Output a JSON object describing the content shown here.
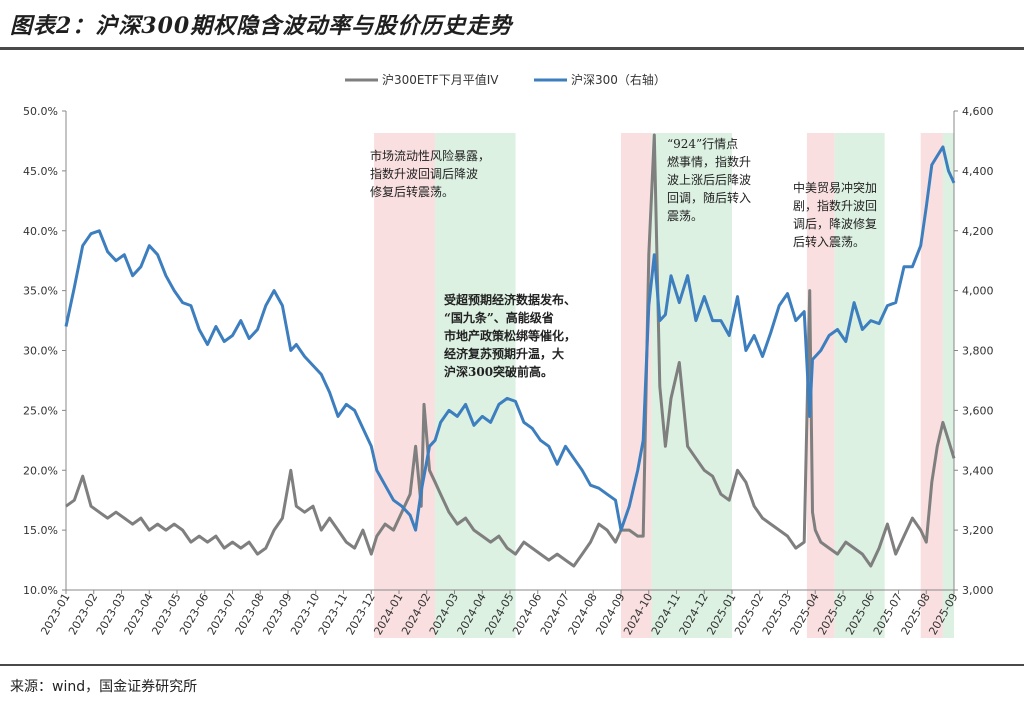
{
  "page": {
    "title": "图表2：沪深300期权隐含波动率与股价历史走势",
    "source": "来源：wind，国金证券研究所"
  },
  "colors": {
    "iv_line": "#7f7f7f",
    "index_line": "#3d7ebf",
    "risk_band": "#f8d9d9",
    "calm_band": "#d6efdd"
  },
  "chart_data": {
    "type": "line",
    "title": "",
    "legend": [
      "沪300ETF下月平值IV",
      "沪深300（右轴）"
    ],
    "legend_position": "top-center",
    "x_tick_labels": [
      "2023-01",
      "2023-02",
      "2023-03",
      "2023-04",
      "2023-05",
      "2023-06",
      "2023-07",
      "2023-08",
      "2023-09",
      "2023-10",
      "2023-11",
      "2023-12",
      "2024-01",
      "2024-02",
      "2024-03",
      "2024-04",
      "2024-05",
      "2024-06",
      "2024-07",
      "2024-08",
      "2024-09",
      "2024-10",
      "2024-11",
      "2024-12",
      "2025-01",
      "2025-02",
      "2025-03",
      "2025-04",
      "2025-05",
      "2025-06",
      "2025-07",
      "2025-08",
      "2025-09"
    ],
    "y_left": {
      "min": 10,
      "max": 50,
      "ticks": [
        "10.0%",
        "15.0%",
        "20.0%",
        "25.0%",
        "30.0%",
        "35.0%",
        "40.0%",
        "45.0%",
        "50.0%"
      ]
    },
    "y_right": {
      "min": 3000,
      "max": 4600,
      "ticks": [
        "3,000",
        "3,200",
        "3,400",
        "3,600",
        "3,800",
        "4,000",
        "4,200",
        "4,400",
        "4,600"
      ]
    },
    "bands": [
      {
        "start": 11.1,
        "end": 13.3,
        "kind": "risk"
      },
      {
        "start": 13.3,
        "end": 16.2,
        "kind": "calm"
      },
      {
        "start": 20.0,
        "end": 21.1,
        "kind": "risk"
      },
      {
        "start": 21.1,
        "end": 24.0,
        "kind": "calm"
      },
      {
        "start": 26.7,
        "end": 27.7,
        "kind": "risk"
      },
      {
        "start": 27.7,
        "end": 29.5,
        "kind": "calm"
      },
      {
        "start": 30.8,
        "end": 31.6,
        "kind": "risk"
      },
      {
        "start": 31.6,
        "end": 32.0,
        "kind": "calm"
      }
    ],
    "series": [
      {
        "name": "沪300ETF下月平值IV",
        "axis": "left",
        "t": [
          0,
          0.3,
          0.6,
          0.9,
          1.2,
          1.5,
          1.8,
          2.1,
          2.4,
          2.7,
          3.0,
          3.3,
          3.6,
          3.9,
          4.2,
          4.5,
          4.8,
          5.1,
          5.4,
          5.7,
          6.0,
          6.3,
          6.6,
          6.9,
          7.2,
          7.5,
          7.8,
          8.1,
          8.3,
          8.6,
          8.9,
          9.2,
          9.5,
          9.8,
          10.1,
          10.4,
          10.7,
          11.0,
          11.2,
          11.5,
          11.8,
          12.1,
          12.4,
          12.6,
          12.8,
          12.9,
          13.1,
          13.3,
          13.5,
          13.8,
          14.1,
          14.4,
          14.7,
          15.0,
          15.3,
          15.6,
          15.9,
          16.2,
          16.5,
          16.8,
          17.1,
          17.4,
          17.7,
          18.0,
          18.3,
          18.6,
          18.9,
          19.2,
          19.5,
          19.8,
          20.0,
          20.3,
          20.6,
          20.8,
          21.0,
          21.2,
          21.4,
          21.6,
          21.8,
          22.1,
          22.4,
          22.7,
          23.0,
          23.3,
          23.6,
          23.9,
          24.2,
          24.5,
          24.8,
          25.1,
          25.4,
          25.7,
          26.0,
          26.3,
          26.6,
          26.8,
          26.9,
          27.0,
          27.2,
          27.5,
          27.8,
          28.1,
          28.4,
          28.7,
          29.0,
          29.3,
          29.6,
          29.9,
          30.2,
          30.5,
          30.8,
          31.0,
          31.2,
          31.4,
          31.6,
          31.8,
          32.0
        ],
        "values": [
          17.0,
          17.5,
          19.5,
          17.0,
          16.5,
          16.0,
          16.5,
          16.0,
          15.5,
          16.0,
          15.0,
          15.5,
          15.0,
          15.5,
          15.0,
          14.0,
          14.5,
          14.0,
          14.5,
          13.5,
          14.0,
          13.5,
          14.0,
          13.0,
          13.5,
          15.0,
          16.0,
          20.0,
          17.0,
          16.5,
          17.0,
          15.0,
          16.0,
          15.0,
          14.0,
          13.5,
          15.0,
          13.0,
          14.5,
          15.5,
          15.0,
          16.5,
          18.0,
          22.0,
          17.0,
          25.5,
          20.0,
          19.0,
          18.0,
          16.5,
          15.5,
          16.0,
          15.0,
          14.5,
          14.0,
          14.5,
          13.5,
          13.0,
          14.0,
          13.5,
          13.0,
          12.5,
          13.0,
          12.5,
          12.0,
          13.0,
          14.0,
          15.5,
          15.0,
          14.0,
          15.0,
          15.0,
          14.5,
          14.5,
          38.0,
          48.0,
          27.0,
          22.0,
          26.0,
          29.0,
          22.0,
          21.0,
          20.0,
          19.5,
          18.0,
          17.5,
          20.0,
          19.0,
          17.0,
          16.0,
          15.5,
          15.0,
          14.5,
          13.5,
          14.0,
          35.0,
          16.5,
          15.0,
          14.0,
          13.5,
          13.0,
          14.0,
          13.5,
          13.0,
          12.0,
          13.5,
          15.5,
          13.0,
          14.5,
          16.0,
          15.0,
          14.0,
          19.0,
          22.0,
          24.0,
          22.5,
          21.0
        ]
      },
      {
        "name": "沪深300（右轴）",
        "axis": "right",
        "t": [
          0,
          0.3,
          0.6,
          0.9,
          1.2,
          1.5,
          1.8,
          2.1,
          2.4,
          2.7,
          3.0,
          3.3,
          3.6,
          3.9,
          4.2,
          4.5,
          4.8,
          5.1,
          5.4,
          5.7,
          6.0,
          6.3,
          6.6,
          6.9,
          7.2,
          7.5,
          7.8,
          8.1,
          8.3,
          8.6,
          8.9,
          9.2,
          9.5,
          9.8,
          10.1,
          10.4,
          10.7,
          11.0,
          11.2,
          11.5,
          11.8,
          12.1,
          12.4,
          12.6,
          12.8,
          12.9,
          13.1,
          13.3,
          13.5,
          13.8,
          14.1,
          14.4,
          14.7,
          15.0,
          15.3,
          15.6,
          15.9,
          16.2,
          16.5,
          16.8,
          17.1,
          17.4,
          17.7,
          18.0,
          18.3,
          18.6,
          18.9,
          19.2,
          19.5,
          19.8,
          20.0,
          20.3,
          20.6,
          20.8,
          21.0,
          21.2,
          21.4,
          21.6,
          21.8,
          22.1,
          22.4,
          22.7,
          23.0,
          23.3,
          23.6,
          23.9,
          24.2,
          24.5,
          24.8,
          25.1,
          25.4,
          25.7,
          26.0,
          26.3,
          26.6,
          26.8,
          26.9,
          27.0,
          27.2,
          27.5,
          27.8,
          28.1,
          28.4,
          28.7,
          29.0,
          29.3,
          29.6,
          29.9,
          30.2,
          30.5,
          30.8,
          31.0,
          31.2,
          31.4,
          31.6,
          31.8,
          32.0
        ],
        "values": [
          3880,
          4010,
          4150,
          4190,
          4200,
          4130,
          4100,
          4120,
          4050,
          4080,
          4150,
          4120,
          4050,
          4000,
          3960,
          3950,
          3870,
          3820,
          3880,
          3830,
          3850,
          3900,
          3840,
          3870,
          3950,
          4000,
          3950,
          3800,
          3820,
          3780,
          3750,
          3720,
          3660,
          3580,
          3620,
          3600,
          3540,
          3480,
          3400,
          3350,
          3300,
          3280,
          3250,
          3200,
          3330,
          3380,
          3480,
          3500,
          3560,
          3600,
          3580,
          3620,
          3550,
          3580,
          3560,
          3620,
          3640,
          3630,
          3560,
          3540,
          3500,
          3480,
          3420,
          3480,
          3440,
          3400,
          3350,
          3340,
          3320,
          3300,
          3200,
          3280,
          3400,
          3500,
          3950,
          4120,
          3900,
          3920,
          4050,
          3960,
          4050,
          3900,
          3980,
          3900,
          3900,
          3850,
          3980,
          3800,
          3850,
          3780,
          3860,
          3950,
          3990,
          3900,
          3930,
          3580,
          3770,
          3780,
          3800,
          3850,
          3870,
          3830,
          3960,
          3870,
          3900,
          3890,
          3950,
          3960,
          4080,
          4080,
          4150,
          4280,
          4420,
          4450,
          4480,
          4400,
          4360
        ]
      }
    ],
    "annotations": [
      {
        "id": "a1",
        "bold": false,
        "lines": [
          "市场流动性风险暴露，",
          "指数升波回调后降波",
          "修复后转震荡。"
        ]
      },
      {
        "id": "a2",
        "bold": true,
        "lines": [
          "受超预期经济数据发布、",
          "“国九条”、高能级省",
          "市地产政策松绑等催化，",
          "经济复苏预期升温，大",
          "沪深300突破前高。"
        ]
      },
      {
        "id": "a3",
        "bold": false,
        "lines": [
          "“924”行情点",
          "燃事情，指数升",
          "波上涨后后降波",
          "回调，随后转入",
          "震荡。"
        ]
      },
      {
        "id": "a4",
        "bold": false,
        "lines": [
          "中美贸易冲突加",
          "剧，指数升波回",
          "调后，降波修复",
          "后转入震荡。"
        ]
      }
    ]
  }
}
